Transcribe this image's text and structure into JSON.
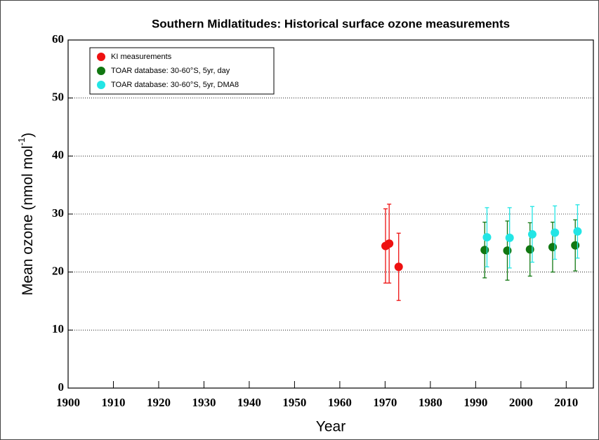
{
  "chart_data": {
    "type": "scatter",
    "title": "Southern Midlatitudes: Historical surface ozone measurements",
    "x_label": "Year",
    "y_label": {
      "text": "Mean ozone (nmol mol",
      "superscript": "-1",
      "suffix": ")"
    },
    "xlim": [
      1900,
      2016
    ],
    "xticks": [
      1900,
      1910,
      1920,
      1930,
      1940,
      1950,
      1960,
      1970,
      1980,
      1990,
      2000,
      2010
    ],
    "ylim": [
      0,
      60
    ],
    "yticks": [
      0,
      10,
      20,
      30,
      40,
      50,
      60
    ],
    "grid": true,
    "legend": "upper left",
    "series": [
      {
        "name": "KI measurements",
        "color": "#ee1111",
        "x": [
          1970.1,
          1970.9,
          1973
        ],
        "values": [
          24.5,
          24.9,
          20.9
        ],
        "errors": [
          6.4,
          6.8,
          5.8
        ]
      },
      {
        "name": "TOAR database: 30-60°S, 5yr, day",
        "color": "#117711",
        "x": [
          1992,
          1997,
          2002,
          2007,
          2012
        ],
        "values": [
          23.8,
          23.7,
          23.9,
          24.3,
          24.6
        ],
        "errors": [
          4.8,
          5.1,
          4.6,
          4.3,
          4.4
        ]
      },
      {
        "name": "TOAR database: 30-60°S, 5yr, DMA8",
        "color": "#22e5e5",
        "x": [
          1992.5,
          1997.5,
          2002.5,
          2007.5,
          2012.5
        ],
        "values": [
          26.0,
          25.9,
          26.5,
          26.8,
          27.0
        ],
        "errors": [
          5.1,
          5.2,
          4.8,
          4.6,
          4.6
        ]
      }
    ]
  }
}
